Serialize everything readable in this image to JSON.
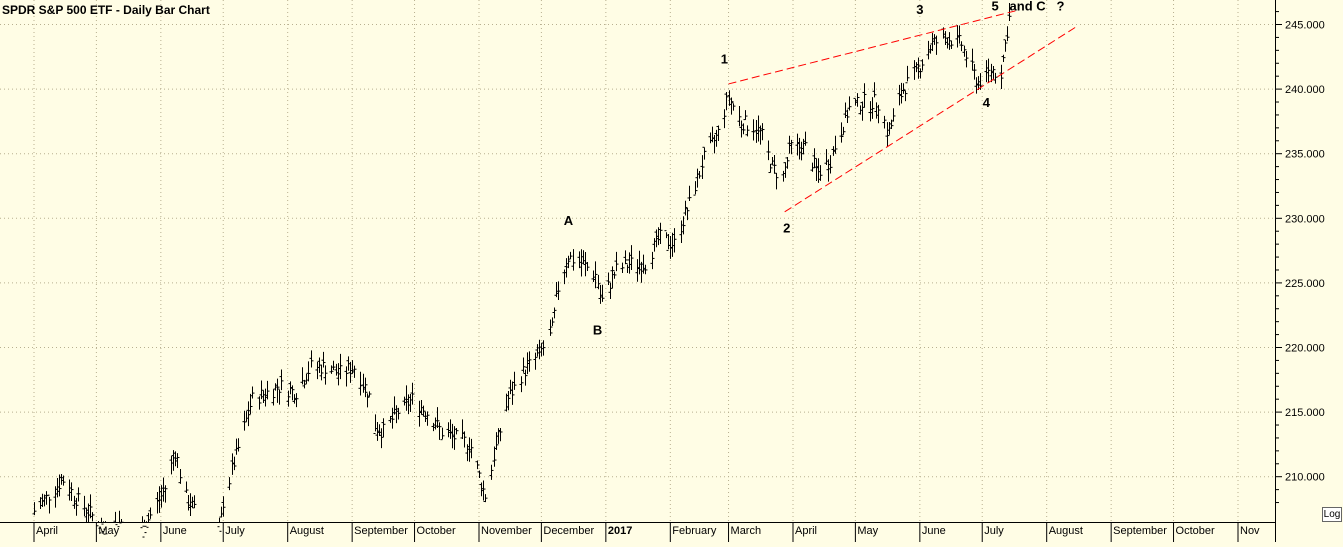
{
  "chart_data": {
    "type": "bar",
    "subtype": "ohlc-daily",
    "title": "SPDR S&P 500 ETF - Daily Bar Chart",
    "y_axis": {
      "side": "right",
      "scale": "linear",
      "range": [
        207.5,
        246.8
      ],
      "ticks": [
        "245.000",
        "240.000",
        "235.000",
        "230.000",
        "225.000",
        "220.000",
        "215.000",
        "210.000"
      ],
      "tick_values": [
        245,
        240,
        235,
        230,
        225,
        220,
        215,
        210
      ]
    },
    "x_axis": {
      "labels": [
        "April",
        "May",
        "June",
        "July",
        "August",
        "September",
        "October",
        "November",
        "December",
        "2017",
        "February",
        "March",
        "April",
        "May",
        "June",
        "July",
        "August",
        "September",
        "October",
        "Nov"
      ],
      "bold_labels": [
        "2017"
      ]
    },
    "grid": true,
    "grid_style": "dotted",
    "price_path": [
      [
        "2016-04-01",
        207.3
      ],
      [
        "2016-04-08",
        208.5
      ],
      [
        "2016-04-15",
        209.8
      ],
      [
        "2016-04-22",
        208.2
      ],
      [
        "2016-04-29",
        207.0
      ],
      [
        "2016-05-06",
        205.5
      ],
      [
        "2016-05-13",
        206.5
      ],
      [
        "2016-05-20",
        205.0
      ],
      [
        "2016-05-27",
        207.0
      ],
      [
        "2016-06-03",
        209.0
      ],
      [
        "2016-06-08",
        212.0
      ],
      [
        "2016-06-13",
        208.5
      ],
      [
        "2016-06-17",
        207.5
      ],
      [
        "2016-06-24",
        203.0
      ],
      [
        "2016-06-28",
        203.5
      ],
      [
        "2016-07-01",
        208.0
      ],
      [
        "2016-07-08",
        212.0
      ],
      [
        "2016-07-15",
        216.0
      ],
      [
        "2016-07-22",
        216.5
      ],
      [
        "2016-07-29",
        217.0
      ],
      [
        "2016-08-05",
        216.5
      ],
      [
        "2016-08-12",
        218.5
      ],
      [
        "2016-08-19",
        218.5
      ],
      [
        "2016-08-26",
        218.0
      ],
      [
        "2016-09-02",
        218.5
      ],
      [
        "2016-09-09",
        216.5
      ],
      [
        "2016-09-12",
        214.0
      ],
      [
        "2016-09-16",
        213.5
      ],
      [
        "2016-09-23",
        215.0
      ],
      [
        "2016-09-30",
        216.0
      ],
      [
        "2016-10-07",
        215.0
      ],
      [
        "2016-10-14",
        213.5
      ],
      [
        "2016-10-21",
        213.0
      ],
      [
        "2016-10-28",
        212.5
      ],
      [
        "2016-11-04",
        208.5
      ],
      [
        "2016-11-09",
        212.0
      ],
      [
        "2016-11-15",
        216.0
      ],
      [
        "2016-11-22",
        218.0
      ],
      [
        "2016-11-30",
        219.5
      ],
      [
        "2016-12-06",
        221.0
      ],
      [
        "2016-12-09",
        224.5
      ],
      [
        "2016-12-14",
        227.0
      ],
      [
        "2016-12-21",
        226.5
      ],
      [
        "2016-12-28",
        225.5
      ],
      [
        "2016-12-30",
        223.5
      ],
      [
        "2017-01-06",
        226.0
      ],
      [
        "2017-01-13",
        226.5
      ],
      [
        "2017-01-20",
        226.5
      ],
      [
        "2017-01-27",
        228.5
      ],
      [
        "2017-02-03",
        228.0
      ],
      [
        "2017-02-10",
        231.0
      ],
      [
        "2017-02-17",
        234.5
      ],
      [
        "2017-02-24",
        236.5
      ],
      [
        "2017-03-01",
        239.5
      ],
      [
        "2017-03-07",
        237.5
      ],
      [
        "2017-03-14",
        237.0
      ],
      [
        "2017-03-17",
        236.5
      ],
      [
        "2017-03-22",
        234.0
      ],
      [
        "2017-03-27",
        233.0
      ],
      [
        "2017-03-31",
        235.5
      ],
      [
        "2017-04-07",
        235.5
      ],
      [
        "2017-04-13",
        233.5
      ],
      [
        "2017-04-19",
        234.5
      ],
      [
        "2017-04-28",
        238.5
      ],
      [
        "2017-05-05",
        239.0
      ],
      [
        "2017-05-12",
        239.0
      ],
      [
        "2017-05-17",
        236.5
      ],
      [
        "2017-05-24",
        240.0
      ],
      [
        "2017-05-31",
        241.5
      ],
      [
        "2017-06-07",
        243.5
      ],
      [
        "2017-06-14",
        244.0
      ],
      [
        "2017-06-21",
        243.5
      ],
      [
        "2017-06-29",
        240.5
      ],
      [
        "2017-07-06",
        241.5
      ],
      [
        "2017-07-10",
        241.0
      ],
      [
        "2017-07-14",
        245.5
      ]
    ],
    "trendlines": [
      {
        "style": "dashed",
        "color": "#ff0000",
        "from": [
          "2017-03-01",
          240.4
        ],
        "to": [
          "2017-07-18",
          246.1
        ]
      },
      {
        "style": "dashed",
        "color": "#ff0000",
        "from": [
          "2017-03-28",
          230.5
        ],
        "to": [
          "2017-08-15",
          244.8
        ]
      }
    ],
    "annotations": [
      {
        "text": "A",
        "x": "2016-12-14",
        "y": 229.5
      },
      {
        "text": "B",
        "x": "2016-12-28",
        "y": 221.0
      },
      {
        "text": "1",
        "x": "2017-02-27",
        "y": 242.0
      },
      {
        "text": "2",
        "x": "2017-03-29",
        "y": 228.9
      },
      {
        "text": "3",
        "x": "2017-06-01",
        "y": 245.8
      },
      {
        "text": "4",
        "x": "2017-07-03",
        "y": 238.6
      },
      {
        "text": "5   and C   ?",
        "x": "2017-07-23",
        "y": 246.1
      }
    ]
  },
  "ui": {
    "log_label": "Log"
  },
  "colors": {
    "background": "#fffde5",
    "bars": "#000000",
    "grid": "#b8b090",
    "trendline": "#ff0000"
  }
}
